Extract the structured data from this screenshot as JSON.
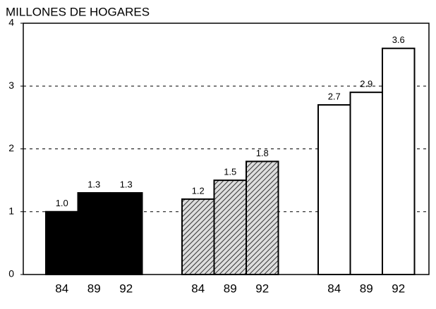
{
  "chart_data": {
    "type": "bar",
    "title": "MILLONES DE HOGARES",
    "categories": [
      "84",
      "89",
      "92"
    ],
    "series": [
      {
        "color": "#000000",
        "values": [
          1.0,
          1.3,
          1.3
        ],
        "value_labels": [
          "1.0",
          "1.3",
          "1.3"
        ]
      },
      {
        "color": "#555555",
        "hatch": true,
        "values": [
          1.2,
          1.5,
          1.8
        ],
        "value_labels": [
          "1.2",
          "1.5",
          "1.8"
        ]
      },
      {
        "color": "#ffffff",
        "values": [
          2.7,
          2.9,
          3.6
        ],
        "value_labels": [
          "2.7",
          "2.9",
          "3.6"
        ]
      }
    ],
    "ylim": [
      0,
      4
    ],
    "yticks": [
      0,
      1,
      2,
      3,
      4
    ],
    "grid": true
  }
}
